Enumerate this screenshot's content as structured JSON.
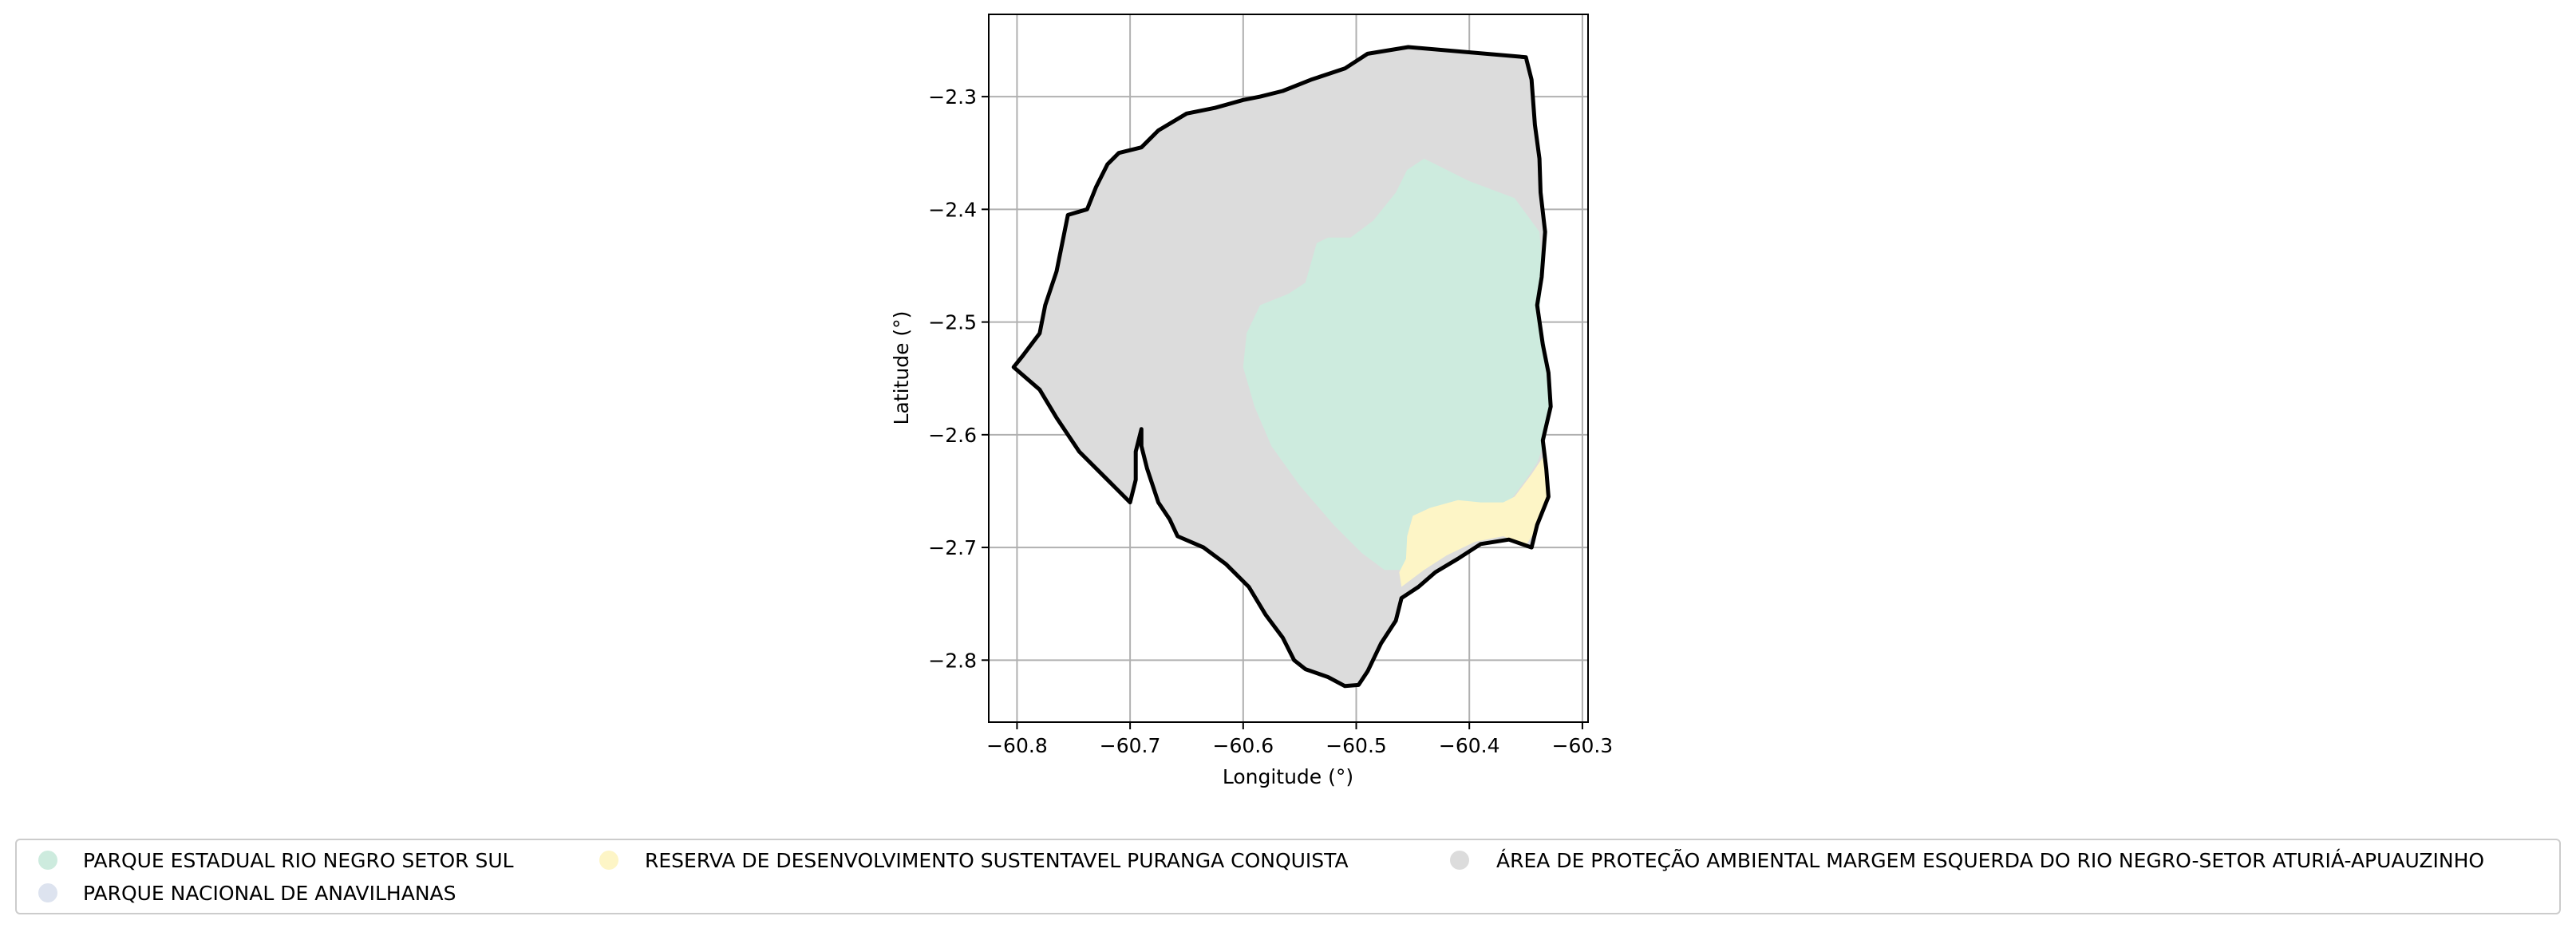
{
  "map": {
    "xlabel": "Longitude (°)",
    "ylabel": "Latitude (°)",
    "xlim": [
      -60.825,
      -60.295
    ],
    "ylim": [
      -2.855,
      -2.227
    ],
    "grid": true,
    "x_ticks": [
      {
        "value": -60.8,
        "label": "−60.8"
      },
      {
        "value": -60.7,
        "label": "−60.7"
      },
      {
        "value": -60.6,
        "label": "−60.6"
      },
      {
        "value": -60.5,
        "label": "−60.5"
      },
      {
        "value": -60.4,
        "label": "−60.4"
      },
      {
        "value": -60.3,
        "label": "−60.3"
      }
    ],
    "y_ticks": [
      {
        "value": -2.3,
        "label": "−2.3"
      },
      {
        "value": -2.4,
        "label": "−2.4"
      },
      {
        "value": -2.5,
        "label": "−2.5"
      },
      {
        "value": -2.6,
        "label": "−2.6"
      },
      {
        "value": -2.7,
        "label": "−2.7"
      },
      {
        "value": -2.8,
        "label": "−2.8"
      }
    ],
    "legend_position": "bottom",
    "legend": [
      {
        "label": "PARQUE ESTADUAL RIO NEGRO SETOR SUL",
        "color": "#cdebde"
      },
      {
        "label": "RESERVA DE DESENVOLVIMENTO SUSTENTAVEL PURANGA CONQUISTA",
        "color": "#fdf5c6"
      },
      {
        "label": "ÁREA DE PROTEÇÃO AMBIENTAL MARGEM ESQUERDA DO RIO NEGRO-SETOR ATURIÁ-APUAUZINHO",
        "color": "#dcdcdc"
      },
      {
        "label": "PARQUE NACIONAL DE ANAVILHANAS",
        "color": "#dde3ef"
      }
    ],
    "boundary_color": "#000000",
    "grid_color": "#b0b0b0",
    "regions": [
      {
        "name": "ÁREA DE PROTEÇÃO AMBIENTAL MARGEM ESQUERDA DO RIO NEGRO-SETOR ATURIÁ-APUAUZINHO",
        "color": "#dcdcdc",
        "coords": [
          [
            -60.454,
            -2.256
          ],
          [
            -60.35,
            -2.265
          ],
          [
            -60.345,
            -2.285
          ],
          [
            -60.342,
            -2.325
          ],
          [
            -60.338,
            -2.355
          ],
          [
            -60.337,
            -2.385
          ],
          [
            -60.333,
            -2.42
          ],
          [
            -60.336,
            -2.46
          ],
          [
            -60.34,
            -2.485
          ],
          [
            -60.335,
            -2.52
          ],
          [
            -60.33,
            -2.545
          ],
          [
            -60.328,
            -2.575
          ],
          [
            -60.335,
            -2.605
          ],
          [
            -60.332,
            -2.63
          ],
          [
            -60.33,
            -2.655
          ],
          [
            -60.34,
            -2.68
          ],
          [
            -60.345,
            -2.7
          ],
          [
            -60.365,
            -2.693
          ],
          [
            -60.39,
            -2.697
          ],
          [
            -60.41,
            -2.71
          ],
          [
            -60.43,
            -2.722
          ],
          [
            -60.445,
            -2.735
          ],
          [
            -60.46,
            -2.745
          ],
          [
            -60.465,
            -2.765
          ],
          [
            -60.478,
            -2.785
          ],
          [
            -60.49,
            -2.81
          ],
          [
            -60.498,
            -2.822
          ],
          [
            -60.51,
            -2.823
          ],
          [
            -60.525,
            -2.815
          ],
          [
            -60.545,
            -2.808
          ],
          [
            -60.555,
            -2.8
          ],
          [
            -60.565,
            -2.78
          ],
          [
            -60.58,
            -2.76
          ],
          [
            -60.595,
            -2.735
          ],
          [
            -60.615,
            -2.715
          ],
          [
            -60.635,
            -2.7
          ],
          [
            -60.658,
            -2.69
          ],
          [
            -60.665,
            -2.675
          ],
          [
            -60.675,
            -2.66
          ],
          [
            -60.685,
            -2.63
          ],
          [
            -60.69,
            -2.61
          ],
          [
            -60.69,
            -2.595
          ],
          [
            -60.695,
            -2.615
          ],
          [
            -60.695,
            -2.64
          ],
          [
            -60.7,
            -2.66
          ],
          [
            -60.72,
            -2.64
          ],
          [
            -60.745,
            -2.615
          ],
          [
            -60.765,
            -2.585
          ],
          [
            -60.78,
            -2.56
          ],
          [
            -60.803,
            -2.54
          ],
          [
            -60.795,
            -2.53
          ],
          [
            -60.78,
            -2.51
          ],
          [
            -60.775,
            -2.485
          ],
          [
            -60.765,
            -2.455
          ],
          [
            -60.76,
            -2.43
          ],
          [
            -60.755,
            -2.405
          ],
          [
            -60.738,
            -2.4
          ],
          [
            -60.73,
            -2.38
          ],
          [
            -60.72,
            -2.36
          ],
          [
            -60.71,
            -2.35
          ],
          [
            -60.69,
            -2.345
          ],
          [
            -60.675,
            -2.33
          ],
          [
            -60.65,
            -2.315
          ],
          [
            -60.625,
            -2.31
          ],
          [
            -60.6,
            -2.303
          ],
          [
            -60.585,
            -2.3
          ],
          [
            -60.565,
            -2.295
          ],
          [
            -60.54,
            -2.285
          ],
          [
            -60.51,
            -2.275
          ],
          [
            -60.49,
            -2.262
          ]
        ]
      },
      {
        "name": "PARQUE ESTADUAL RIO NEGRO SETOR SUL",
        "color": "#cdebde",
        "coords": [
          [
            -60.44,
            -2.355
          ],
          [
            -60.4,
            -2.375
          ],
          [
            -60.36,
            -2.39
          ],
          [
            -60.338,
            -2.42
          ],
          [
            -60.335,
            -2.46
          ],
          [
            -60.338,
            -2.49
          ],
          [
            -60.333,
            -2.52
          ],
          [
            -60.33,
            -2.55
          ],
          [
            -60.328,
            -2.58
          ],
          [
            -60.333,
            -2.605
          ],
          [
            -60.34,
            -2.625
          ],
          [
            -60.35,
            -2.64
          ],
          [
            -60.365,
            -2.66
          ],
          [
            -60.39,
            -2.665
          ],
          [
            -60.41,
            -2.66
          ],
          [
            -60.435,
            -2.665
          ],
          [
            -60.45,
            -2.672
          ],
          [
            -60.455,
            -2.69
          ],
          [
            -60.455,
            -2.71
          ],
          [
            -60.46,
            -2.72
          ],
          [
            -60.475,
            -2.72
          ],
          [
            -60.495,
            -2.705
          ],
          [
            -60.52,
            -2.68
          ],
          [
            -60.55,
            -2.645
          ],
          [
            -60.575,
            -2.61
          ],
          [
            -60.59,
            -2.575
          ],
          [
            -60.6,
            -2.54
          ],
          [
            -60.597,
            -2.51
          ],
          [
            -60.585,
            -2.485
          ],
          [
            -60.56,
            -2.475
          ],
          [
            -60.545,
            -2.465
          ],
          [
            -60.535,
            -2.43
          ],
          [
            -60.525,
            -2.425
          ],
          [
            -60.505,
            -2.425
          ],
          [
            -60.485,
            -2.41
          ],
          [
            -60.465,
            -2.385
          ],
          [
            -60.455,
            -2.365
          ]
        ]
      },
      {
        "name": "RESERVA DE DESENVOLVIMENTO SUSTENTAVEL PURANGA CONQUISTA",
        "color": "#fdf5c6",
        "coords": [
          [
            -60.335,
            -2.62
          ],
          [
            -60.345,
            -2.635
          ],
          [
            -60.36,
            -2.655
          ],
          [
            -60.37,
            -2.66
          ],
          [
            -60.39,
            -2.66
          ],
          [
            -60.41,
            -2.658
          ],
          [
            -60.435,
            -2.665
          ],
          [
            -60.45,
            -2.672
          ],
          [
            -60.455,
            -2.69
          ],
          [
            -60.456,
            -2.71
          ],
          [
            -60.462,
            -2.722
          ],
          [
            -60.46,
            -2.735
          ],
          [
            -60.44,
            -2.72
          ],
          [
            -60.42,
            -2.707
          ],
          [
            -60.395,
            -2.695
          ],
          [
            -60.37,
            -2.69
          ],
          [
            -60.35,
            -2.698
          ],
          [
            -60.338,
            -2.68
          ],
          [
            -60.33,
            -2.655
          ]
        ]
      }
    ],
    "boundary": [
      [
        -60.454,
        -2.256
      ],
      [
        -60.35,
        -2.265
      ],
      [
        -60.345,
        -2.285
      ],
      [
        -60.342,
        -2.325
      ],
      [
        -60.338,
        -2.355
      ],
      [
        -60.337,
        -2.385
      ],
      [
        -60.333,
        -2.42
      ],
      [
        -60.336,
        -2.46
      ],
      [
        -60.34,
        -2.485
      ],
      [
        -60.335,
        -2.52
      ],
      [
        -60.33,
        -2.545
      ],
      [
        -60.328,
        -2.575
      ],
      [
        -60.335,
        -2.605
      ],
      [
        -60.332,
        -2.63
      ],
      [
        -60.33,
        -2.655
      ],
      [
        -60.34,
        -2.68
      ],
      [
        -60.345,
        -2.7
      ],
      [
        -60.365,
        -2.693
      ],
      [
        -60.39,
        -2.697
      ],
      [
        -60.41,
        -2.71
      ],
      [
        -60.43,
        -2.722
      ],
      [
        -60.445,
        -2.735
      ],
      [
        -60.46,
        -2.745
      ],
      [
        -60.465,
        -2.765
      ],
      [
        -60.478,
        -2.785
      ],
      [
        -60.49,
        -2.81
      ],
      [
        -60.498,
        -2.822
      ],
      [
        -60.51,
        -2.823
      ],
      [
        -60.525,
        -2.815
      ],
      [
        -60.545,
        -2.808
      ],
      [
        -60.555,
        -2.8
      ],
      [
        -60.565,
        -2.78
      ],
      [
        -60.58,
        -2.76
      ],
      [
        -60.595,
        -2.735
      ],
      [
        -60.615,
        -2.715
      ],
      [
        -60.635,
        -2.7
      ],
      [
        -60.658,
        -2.69
      ],
      [
        -60.665,
        -2.675
      ],
      [
        -60.675,
        -2.66
      ],
      [
        -60.685,
        -2.63
      ],
      [
        -60.69,
        -2.61
      ],
      [
        -60.69,
        -2.595
      ],
      [
        -60.695,
        -2.615
      ],
      [
        -60.695,
        -2.64
      ],
      [
        -60.7,
        -2.66
      ],
      [
        -60.72,
        -2.64
      ],
      [
        -60.745,
        -2.615
      ],
      [
        -60.765,
        -2.585
      ],
      [
        -60.78,
        -2.56
      ],
      [
        -60.803,
        -2.54
      ],
      [
        -60.795,
        -2.53
      ],
      [
        -60.78,
        -2.51
      ],
      [
        -60.775,
        -2.485
      ],
      [
        -60.765,
        -2.455
      ],
      [
        -60.76,
        -2.43
      ],
      [
        -60.755,
        -2.405
      ],
      [
        -60.738,
        -2.4
      ],
      [
        -60.73,
        -2.38
      ],
      [
        -60.72,
        -2.36
      ],
      [
        -60.71,
        -2.35
      ],
      [
        -60.69,
        -2.345
      ],
      [
        -60.675,
        -2.33
      ],
      [
        -60.65,
        -2.315
      ],
      [
        -60.625,
        -2.31
      ],
      [
        -60.6,
        -2.303
      ],
      [
        -60.585,
        -2.3
      ],
      [
        -60.565,
        -2.295
      ],
      [
        -60.54,
        -2.285
      ],
      [
        -60.51,
        -2.275
      ],
      [
        -60.49,
        -2.262
      ],
      [
        -60.454,
        -2.256
      ]
    ]
  }
}
